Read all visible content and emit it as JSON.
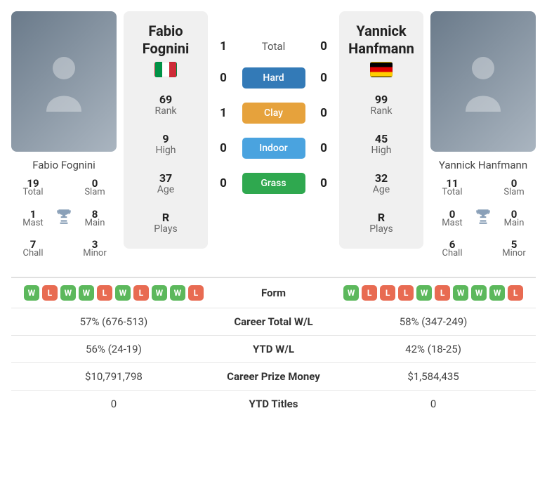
{
  "player1": {
    "name": "Fabio Fognini",
    "flag": "it",
    "rank": "69",
    "high": "9",
    "age": "37",
    "plays": "R",
    "titles": {
      "total": "19",
      "slam": "0",
      "mast": "1",
      "main": "8",
      "chall": "7",
      "minor": "3"
    },
    "form": [
      "W",
      "L",
      "W",
      "W",
      "L",
      "W",
      "L",
      "W",
      "W",
      "L"
    ]
  },
  "player2": {
    "name": "Yannick Hanfmann",
    "flag": "de",
    "rank": "99",
    "high": "45",
    "age": "32",
    "plays": "R",
    "titles": {
      "total": "11",
      "slam": "0",
      "mast": "0",
      "main": "0",
      "chall": "6",
      "minor": "5"
    },
    "form": [
      "W",
      "L",
      "L",
      "L",
      "W",
      "L",
      "W",
      "W",
      "W",
      "L"
    ]
  },
  "labels": {
    "rank": "Rank",
    "high": "High",
    "age": "Age",
    "plays": "Plays",
    "total": "Total",
    "slam": "Slam",
    "mast": "Mast",
    "main": "Main",
    "chall": "Chall",
    "minor": "Minor",
    "form": "Form",
    "career_total": "Career Total W/L",
    "ytd_wl": "YTD W/L",
    "career_prize": "Career Prize Money",
    "ytd_titles": "YTD Titles"
  },
  "h2h": {
    "surfaces": [
      {
        "name": "Total",
        "pill": false,
        "color": "",
        "p1": "1",
        "p2": "0"
      },
      {
        "name": "Hard",
        "pill": true,
        "color": "#337ab7",
        "p1": "0",
        "p2": "0"
      },
      {
        "name": "Clay",
        "pill": true,
        "color": "#e6a23c",
        "p1": "1",
        "p2": "0"
      },
      {
        "name": "Indoor",
        "pill": true,
        "color": "#4aa3df",
        "p1": "0",
        "p2": "0"
      },
      {
        "name": "Grass",
        "pill": true,
        "color": "#2fa84f",
        "p1": "0",
        "p2": "0"
      }
    ]
  },
  "stats": {
    "career_total": {
      "p1": "57% (676-513)",
      "p2": "58% (347-249)"
    },
    "ytd_wl": {
      "p1": "56% (24-19)",
      "p2": "42% (18-25)"
    },
    "career_prize": {
      "p1": "$10,791,798",
      "p2": "$1,584,435"
    },
    "ytd_titles": {
      "p1": "0",
      "p2": "0"
    }
  }
}
